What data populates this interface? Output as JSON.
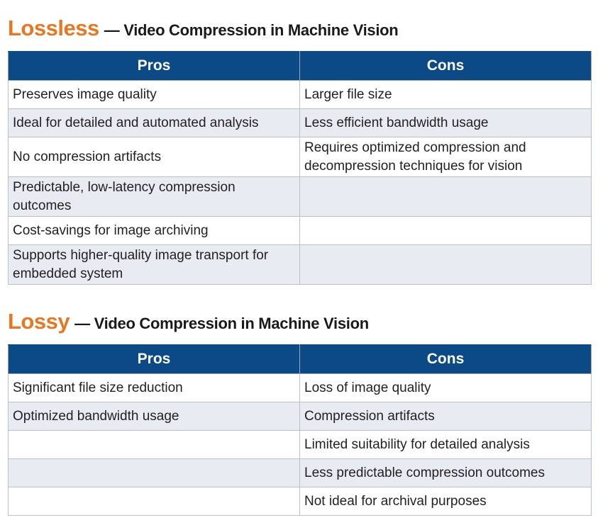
{
  "lossless": {
    "keyword": "Lossless",
    "subtitle": "— Video Compression in Machine Vision",
    "headers": {
      "pros": "Pros",
      "cons": "Cons"
    },
    "rows": [
      {
        "pro": "Preserves image quality",
        "con": "Larger file size"
      },
      {
        "pro": "Ideal for detailed and automated analysis",
        "con": "Less efficient bandwidth usage"
      },
      {
        "pro": "No compression artifacts",
        "con": "Requires optimized compression and decompression techniques for vision"
      },
      {
        "pro": "Predictable, low-latency compression outcomes",
        "con": ""
      },
      {
        "pro": "Cost-savings for image archiving",
        "con": ""
      },
      {
        "pro": "Supports higher-quality image transport for embedded system",
        "con": ""
      }
    ]
  },
  "lossy": {
    "keyword": "Lossy",
    "subtitle": "— Video Compression in Machine Vision",
    "headers": {
      "pros": "Pros",
      "cons": "Cons"
    },
    "rows": [
      {
        "pro": "Significant file size reduction",
        "con": "Loss of image quality"
      },
      {
        "pro": "Optimized bandwidth usage",
        "con": "Compression artifacts"
      },
      {
        "pro": "",
        "con": "Limited suitability for detailed analysis"
      },
      {
        "pro": "",
        "con": "Less predictable compression outcomes"
      },
      {
        "pro": "",
        "con": "Not ideal for archival purposes"
      }
    ]
  },
  "colors": {
    "header_bg": "#0b4a86",
    "header_text": "#ffffff",
    "keyword_orange": "#e87722",
    "alt_row_bg": "#e8ebf2"
  }
}
